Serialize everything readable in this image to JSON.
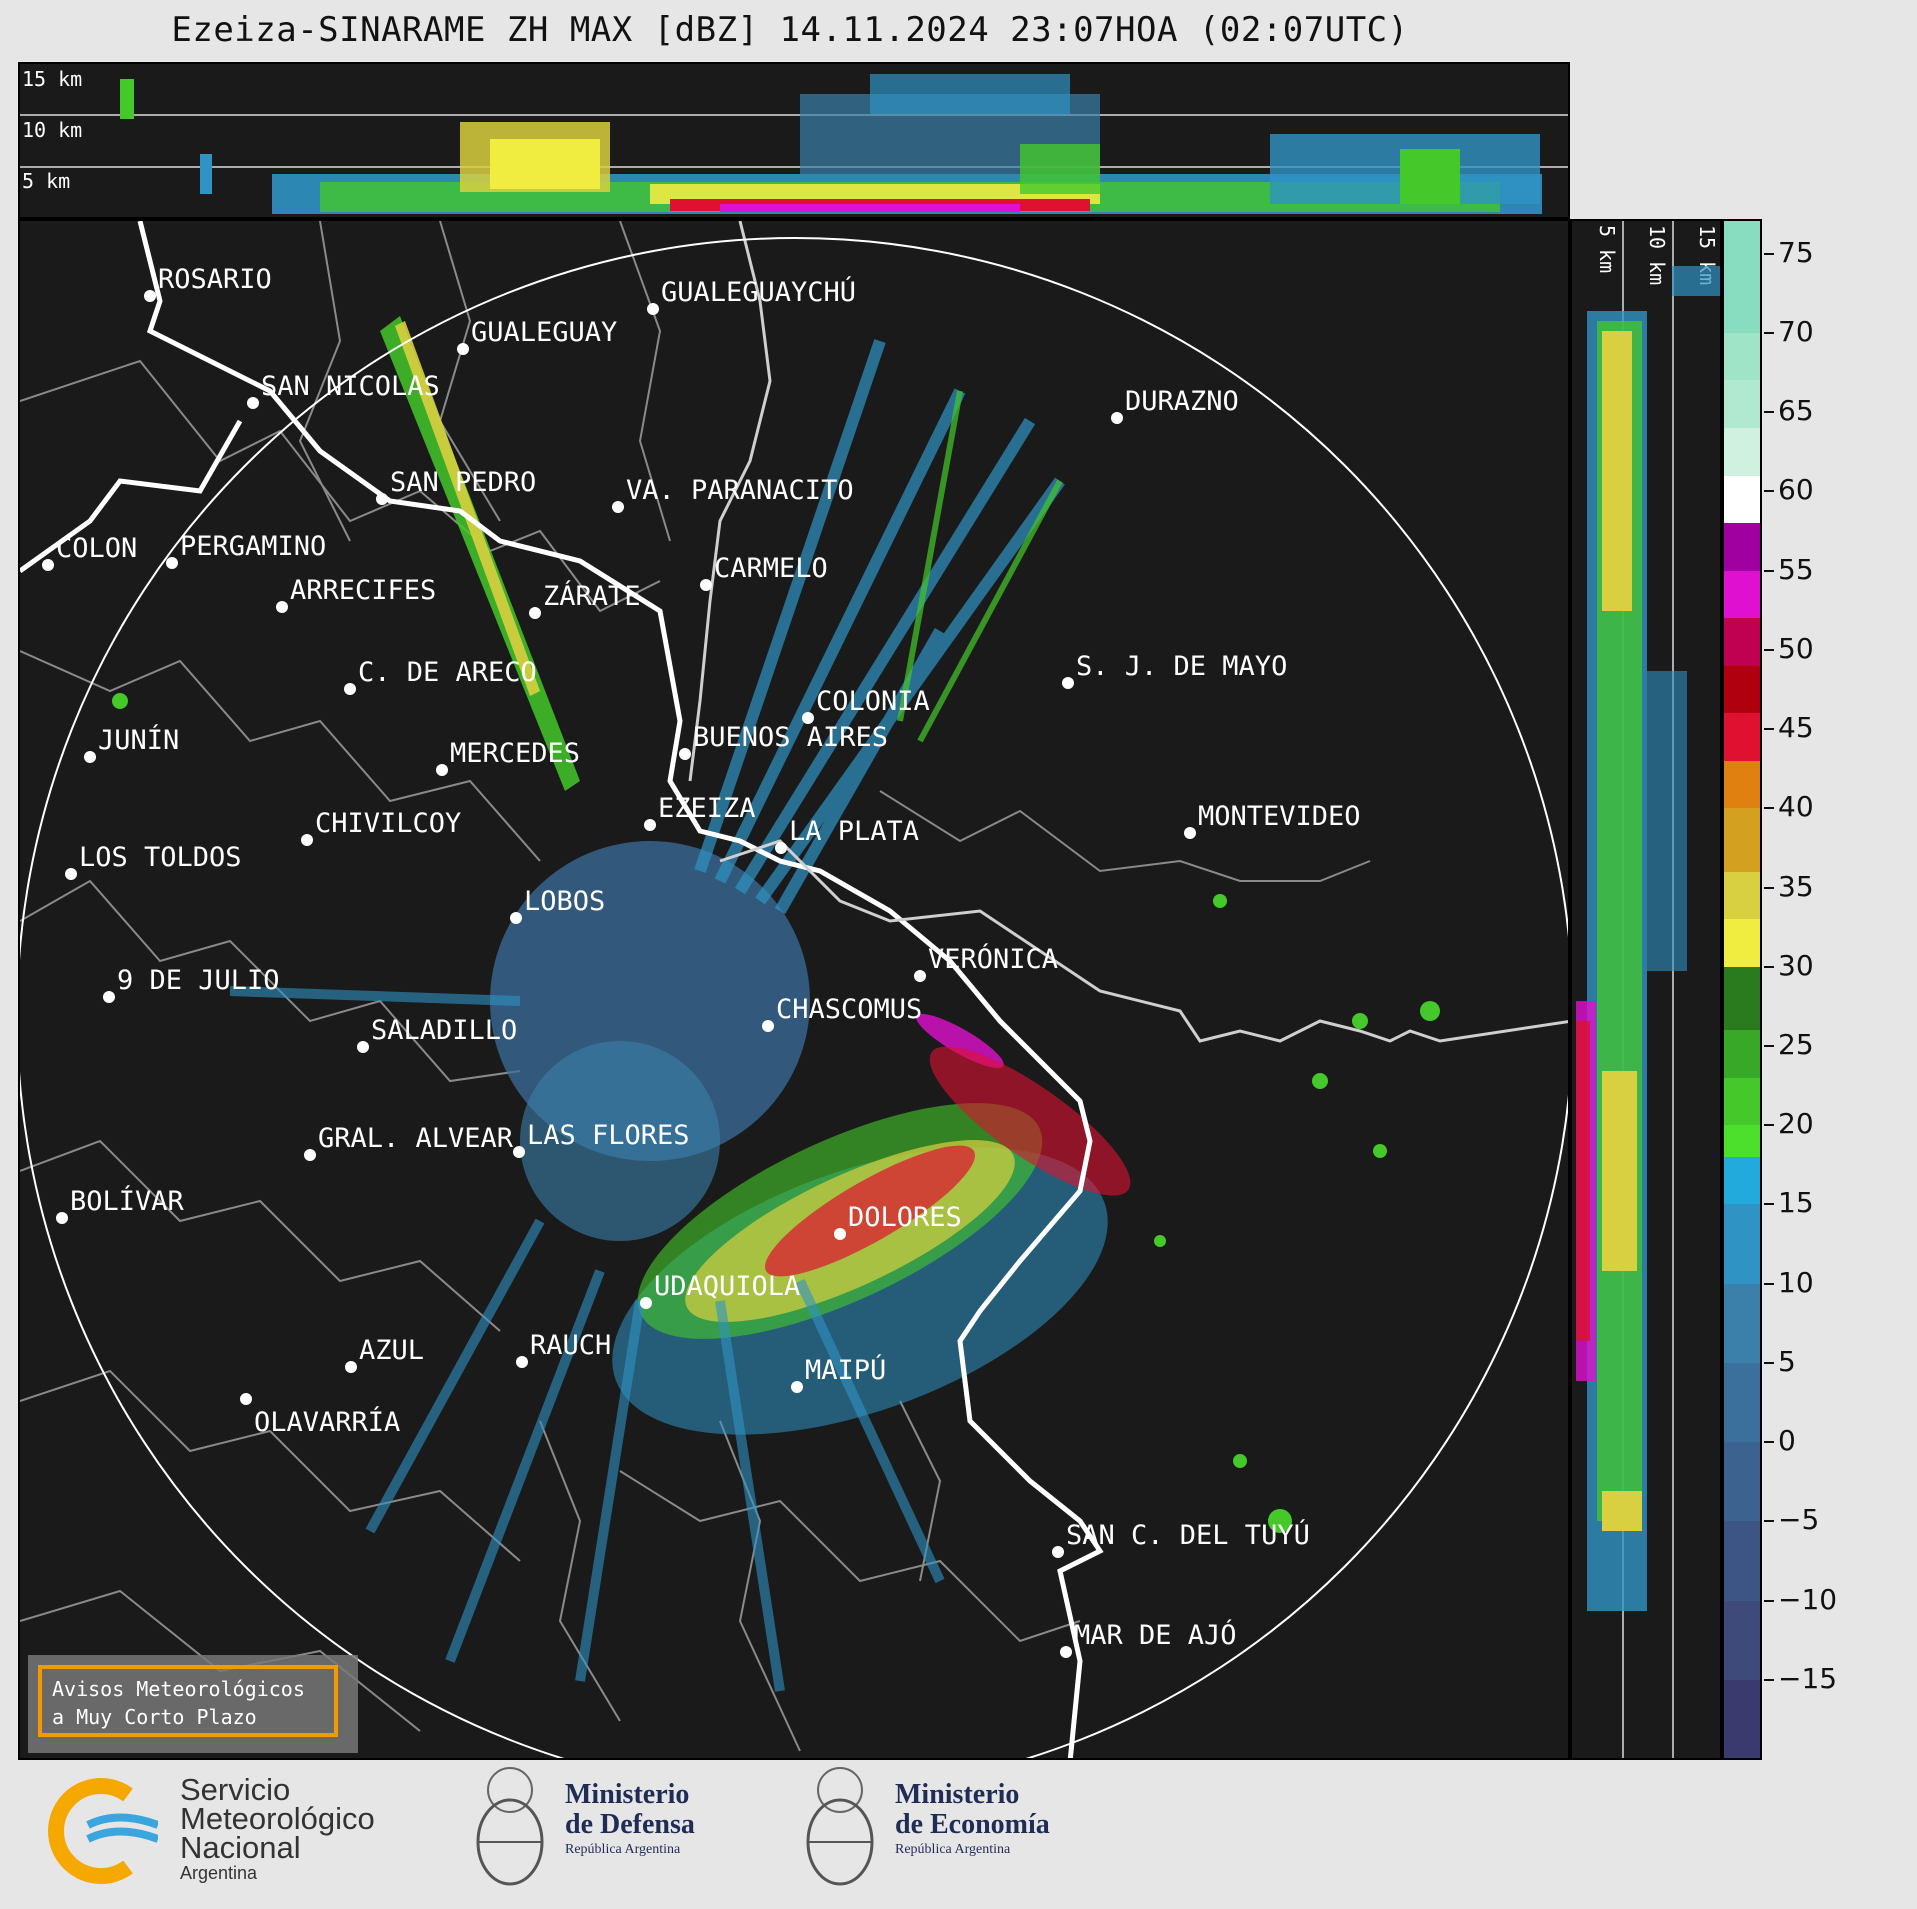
{
  "title": "Ezeiza-SINARAME ZH MAX [dBZ] 14.11.2024 23:07HOA (02:07UTC)",
  "top_panel": {
    "altitude_labels": [
      "15 km",
      "10 km",
      "5 km"
    ]
  },
  "side_panel": {
    "altitude_labels": [
      "5 km",
      "10 km",
      "15 km"
    ]
  },
  "cities": [
    {
      "name": "ROSARIO"
    },
    {
      "name": "GUALEGUAYCHÚ"
    },
    {
      "name": "GUALEGUAY"
    },
    {
      "name": "SAN NICOLAS"
    },
    {
      "name": "DURAZNO"
    },
    {
      "name": "SAN PEDRO"
    },
    {
      "name": "VA. PARANACITO"
    },
    {
      "name": "COLON"
    },
    {
      "name": "PERGAMINO"
    },
    {
      "name": "CARMELO"
    },
    {
      "name": "ARRECIFES"
    },
    {
      "name": "ZÁRATE"
    },
    {
      "name": "S. J. DE MAYO"
    },
    {
      "name": "C. DE ARECO"
    },
    {
      "name": "COLONIA"
    },
    {
      "name": "BUENOS AIRES"
    },
    {
      "name": "JUNÍN"
    },
    {
      "name": "MERCEDES"
    },
    {
      "name": "EZEIZA"
    },
    {
      "name": "MONTEVIDEO"
    },
    {
      "name": "CHIVILCOY"
    },
    {
      "name": "LA PLATA"
    },
    {
      "name": "LOS TOLDOS"
    },
    {
      "name": "LOBOS"
    },
    {
      "name": "VERÓNICA"
    },
    {
      "name": "9 DE JULIO"
    },
    {
      "name": "CHASCOMUS"
    },
    {
      "name": "SALADILLO"
    },
    {
      "name": "GRAL. ALVEAR"
    },
    {
      "name": "LAS FLORES"
    },
    {
      "name": "BOLÍVAR"
    },
    {
      "name": "DOLORES"
    },
    {
      "name": "SAN C. DEL TUYÚ"
    },
    {
      "name": "UDAQUIOLA"
    },
    {
      "name": "MAR DE AJÓ"
    },
    {
      "name": "RAUCH"
    },
    {
      "name": "AZUL"
    },
    {
      "name": "OLAVARRÍA"
    },
    {
      "name": "MAIPÚ"
    }
  ],
  "colorbar": {
    "unit": "dBZ",
    "ticks": [
      "75",
      "70",
      "65",
      "60",
      "55",
      "50",
      "45",
      "40",
      "35",
      "30",
      "25",
      "20",
      "15",
      "10",
      "5",
      "0",
      "−5",
      "−10",
      "−15"
    ],
    "segments": [
      {
        "from": -20,
        "to": -15,
        "color": "#3a3a6e"
      },
      {
        "from": -15,
        "to": -10,
        "color": "#3e4a7a"
      },
      {
        "from": -10,
        "to": -5,
        "color": "#3d5585"
      },
      {
        "from": -5,
        "to": 0,
        "color": "#3c6290"
      },
      {
        "from": 0,
        "to": 5,
        "color": "#3b6f9c"
      },
      {
        "from": 5,
        "to": 10,
        "color": "#3a80aa"
      },
      {
        "from": 10,
        "to": 15,
        "color": "#2f93c4"
      },
      {
        "from": 15,
        "to": 18,
        "color": "#22aadd"
      },
      {
        "from": 18,
        "to": 20,
        "color": "#4ce02c"
      },
      {
        "from": 20,
        "to": 23,
        "color": "#44c82a"
      },
      {
        "from": 23,
        "to": 26,
        "color": "#38a828"
      },
      {
        "from": 26,
        "to": 30,
        "color": "#2a7a1e"
      },
      {
        "from": 30,
        "to": 33,
        "color": "#f0ec40"
      },
      {
        "from": 33,
        "to": 36,
        "color": "#d8d040"
      },
      {
        "from": 36,
        "to": 40,
        "color": "#d4a020"
      },
      {
        "from": 40,
        "to": 43,
        "color": "#e08010"
      },
      {
        "from": 43,
        "to": 46,
        "color": "#e01030"
      },
      {
        "from": 46,
        "to": 49,
        "color": "#b00010"
      },
      {
        "from": 49,
        "to": 52,
        "color": "#c00050"
      },
      {
        "from": 52,
        "to": 55,
        "color": "#e010d0"
      },
      {
        "from": 55,
        "to": 58,
        "color": "#a000a0"
      },
      {
        "from": 58,
        "to": 61,
        "color": "#ffffff"
      },
      {
        "from": 61,
        "to": 64,
        "color": "#d0f0e0"
      },
      {
        "from": 64,
        "to": 67,
        "color": "#b0e8d0"
      },
      {
        "from": 67,
        "to": 70,
        "color": "#a0e4c8"
      },
      {
        "from": 70,
        "to": 77,
        "color": "#88dcc0"
      }
    ],
    "min": -20,
    "max": 77
  },
  "warning_box": {
    "line1": "Avisos Meteorológicos",
    "line2": "a Muy Corto Plazo"
  },
  "logos": {
    "smn": {
      "line1": "Servicio",
      "line2": "Meteorológico",
      "line3": "Nacional",
      "line4": "Argentina"
    },
    "defensa": {
      "line1": "Ministerio",
      "line2": "de Defensa",
      "line3": "República Argentina"
    },
    "economia": {
      "line1": "Ministerio",
      "line2": "de Economía",
      "line3": "República Argentina"
    }
  },
  "colors": {
    "background": "#1a1a1a",
    "river": "#ffffff",
    "border": "#8a8a8a",
    "warning_border": "#f29a00"
  }
}
